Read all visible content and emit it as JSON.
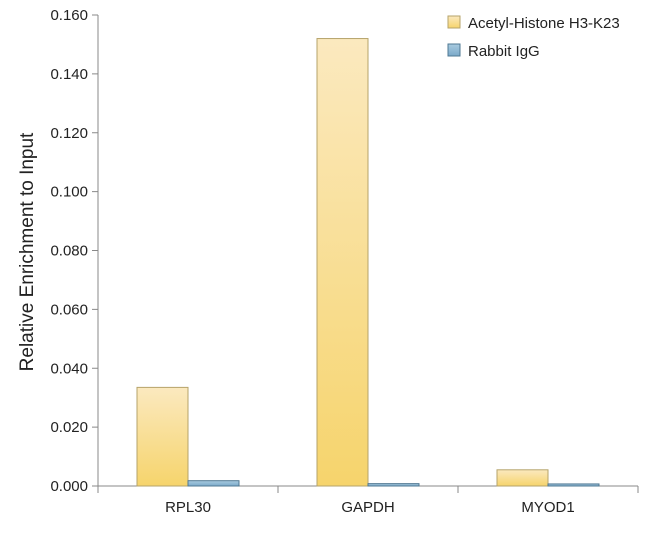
{
  "chart_data": {
    "type": "bar",
    "title": "",
    "xlabel": "",
    "ylabel": "Relative Enrichment to Input",
    "ylim": [
      0,
      0.16
    ],
    "yticks": [
      "0.000",
      "0.020",
      "0.040",
      "0.060",
      "0.080",
      "0.100",
      "0.120",
      "0.140",
      "0.160"
    ],
    "categories": [
      "RPL30",
      "GAPDH",
      "MYOD1"
    ],
    "series": [
      {
        "name": "Acetyl-Histone H3-K23",
        "values": [
          0.0335,
          0.152,
          0.0055
        ],
        "color": "#f5d77a"
      },
      {
        "name": "Rabbit IgG",
        "values": [
          0.0018,
          0.0008,
          0.0007
        ],
        "color": "#8ab4d0"
      }
    ],
    "grid": false,
    "legend_position": "top-right"
  }
}
